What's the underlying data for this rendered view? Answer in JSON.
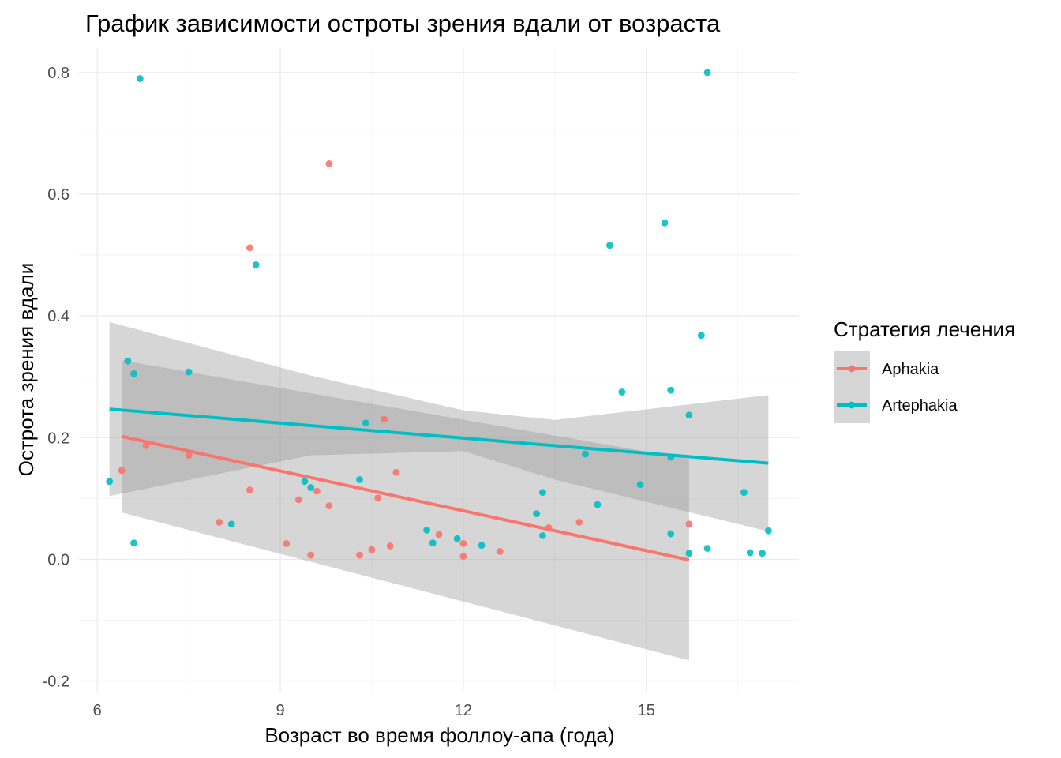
{
  "chart_data": {
    "type": "scatter",
    "title": "График зависимости остроты зрения вдали от возраста",
    "xlabel": "Возраст во время фоллоу-апа (года)",
    "ylabel": "Острота зрения вдали",
    "xlim": [
      5.7,
      17.5
    ],
    "ylim": [
      -0.22,
      0.84
    ],
    "x_ticks": [
      6,
      9,
      12,
      15
    ],
    "y_ticks": [
      -0.2,
      0.0,
      0.2,
      0.4,
      0.6,
      0.8
    ],
    "x_tick_labels": [
      "6",
      "9",
      "12",
      "15"
    ],
    "y_tick_labels": [
      "-0.2",
      "0.0",
      "0.2",
      "0.4",
      "0.6",
      "0.8"
    ],
    "grid": true,
    "legend": {
      "title": "Стратегия лечения",
      "position": "right"
    },
    "series": [
      {
        "name": "Aphakia",
        "color": "#F8766D",
        "points": [
          [
            6.4,
            0.146
          ],
          [
            6.8,
            0.187
          ],
          [
            7.5,
            0.171
          ],
          [
            8.0,
            0.061
          ],
          [
            8.5,
            0.512
          ],
          [
            8.5,
            0.114
          ],
          [
            9.1,
            0.026
          ],
          [
            9.3,
            0.098
          ],
          [
            9.5,
            0.007
          ],
          [
            9.6,
            0.112
          ],
          [
            9.8,
            0.088
          ],
          [
            9.8,
            0.65
          ],
          [
            10.3,
            0.007
          ],
          [
            10.5,
            0.016
          ],
          [
            10.6,
            0.101
          ],
          [
            10.7,
            0.23
          ],
          [
            10.8,
            0.022
          ],
          [
            10.9,
            0.143
          ],
          [
            11.6,
            0.041
          ],
          [
            12.0,
            0.026
          ],
          [
            12.0,
            0.005
          ],
          [
            12.6,
            0.013
          ],
          [
            13.4,
            0.052
          ],
          [
            13.9,
            0.061
          ],
          [
            15.7,
            0.058
          ]
        ],
        "trend": [
          [
            6.4,
            0.202
          ],
          [
            15.7,
            -0.001
          ]
        ],
        "ribbon": [
          [
            6.4,
            0.077,
            0.327
          ],
          [
            15.7,
            -0.166,
            0.165
          ]
        ]
      },
      {
        "name": "Artephakia",
        "color": "#00BFC4",
        "points": [
          [
            6.2,
            0.128
          ],
          [
            6.5,
            0.326
          ],
          [
            6.6,
            0.305
          ],
          [
            6.6,
            0.027
          ],
          [
            6.7,
            0.79
          ],
          [
            7.5,
            0.308
          ],
          [
            8.2,
            0.058
          ],
          [
            8.6,
            0.484
          ],
          [
            9.4,
            0.128
          ],
          [
            9.5,
            0.118
          ],
          [
            10.3,
            0.131
          ],
          [
            10.4,
            0.224
          ],
          [
            11.4,
            0.048
          ],
          [
            11.5,
            0.027
          ],
          [
            11.9,
            0.034
          ],
          [
            12.3,
            0.023
          ],
          [
            13.2,
            0.075
          ],
          [
            13.3,
            0.11
          ],
          [
            13.3,
            0.039
          ],
          [
            14.0,
            0.173
          ],
          [
            14.2,
            0.09
          ],
          [
            14.4,
            0.516
          ],
          [
            14.6,
            0.275
          ],
          [
            14.9,
            0.123
          ],
          [
            15.3,
            0.553
          ],
          [
            15.4,
            0.278
          ],
          [
            15.4,
            0.168
          ],
          [
            15.4,
            0.042
          ],
          [
            15.7,
            0.237
          ],
          [
            15.7,
            0.01
          ],
          [
            15.9,
            0.368
          ],
          [
            16.0,
            0.8
          ],
          [
            16.0,
            0.018
          ],
          [
            16.6,
            0.11
          ],
          [
            16.7,
            0.011
          ],
          [
            16.9,
            0.01
          ],
          [
            17.0,
            0.047
          ]
        ],
        "trend": [
          [
            6.2,
            0.247
          ],
          [
            17.0,
            0.158
          ]
        ],
        "ribbon": [
          [
            6.2,
            0.104,
            0.39
          ],
          [
            9.5,
            0.171,
            0.302
          ],
          [
            12.0,
            0.178,
            0.245
          ],
          [
            13.5,
            0.131,
            0.229
          ],
          [
            17.0,
            0.046,
            0.27
          ]
        ]
      }
    ]
  }
}
